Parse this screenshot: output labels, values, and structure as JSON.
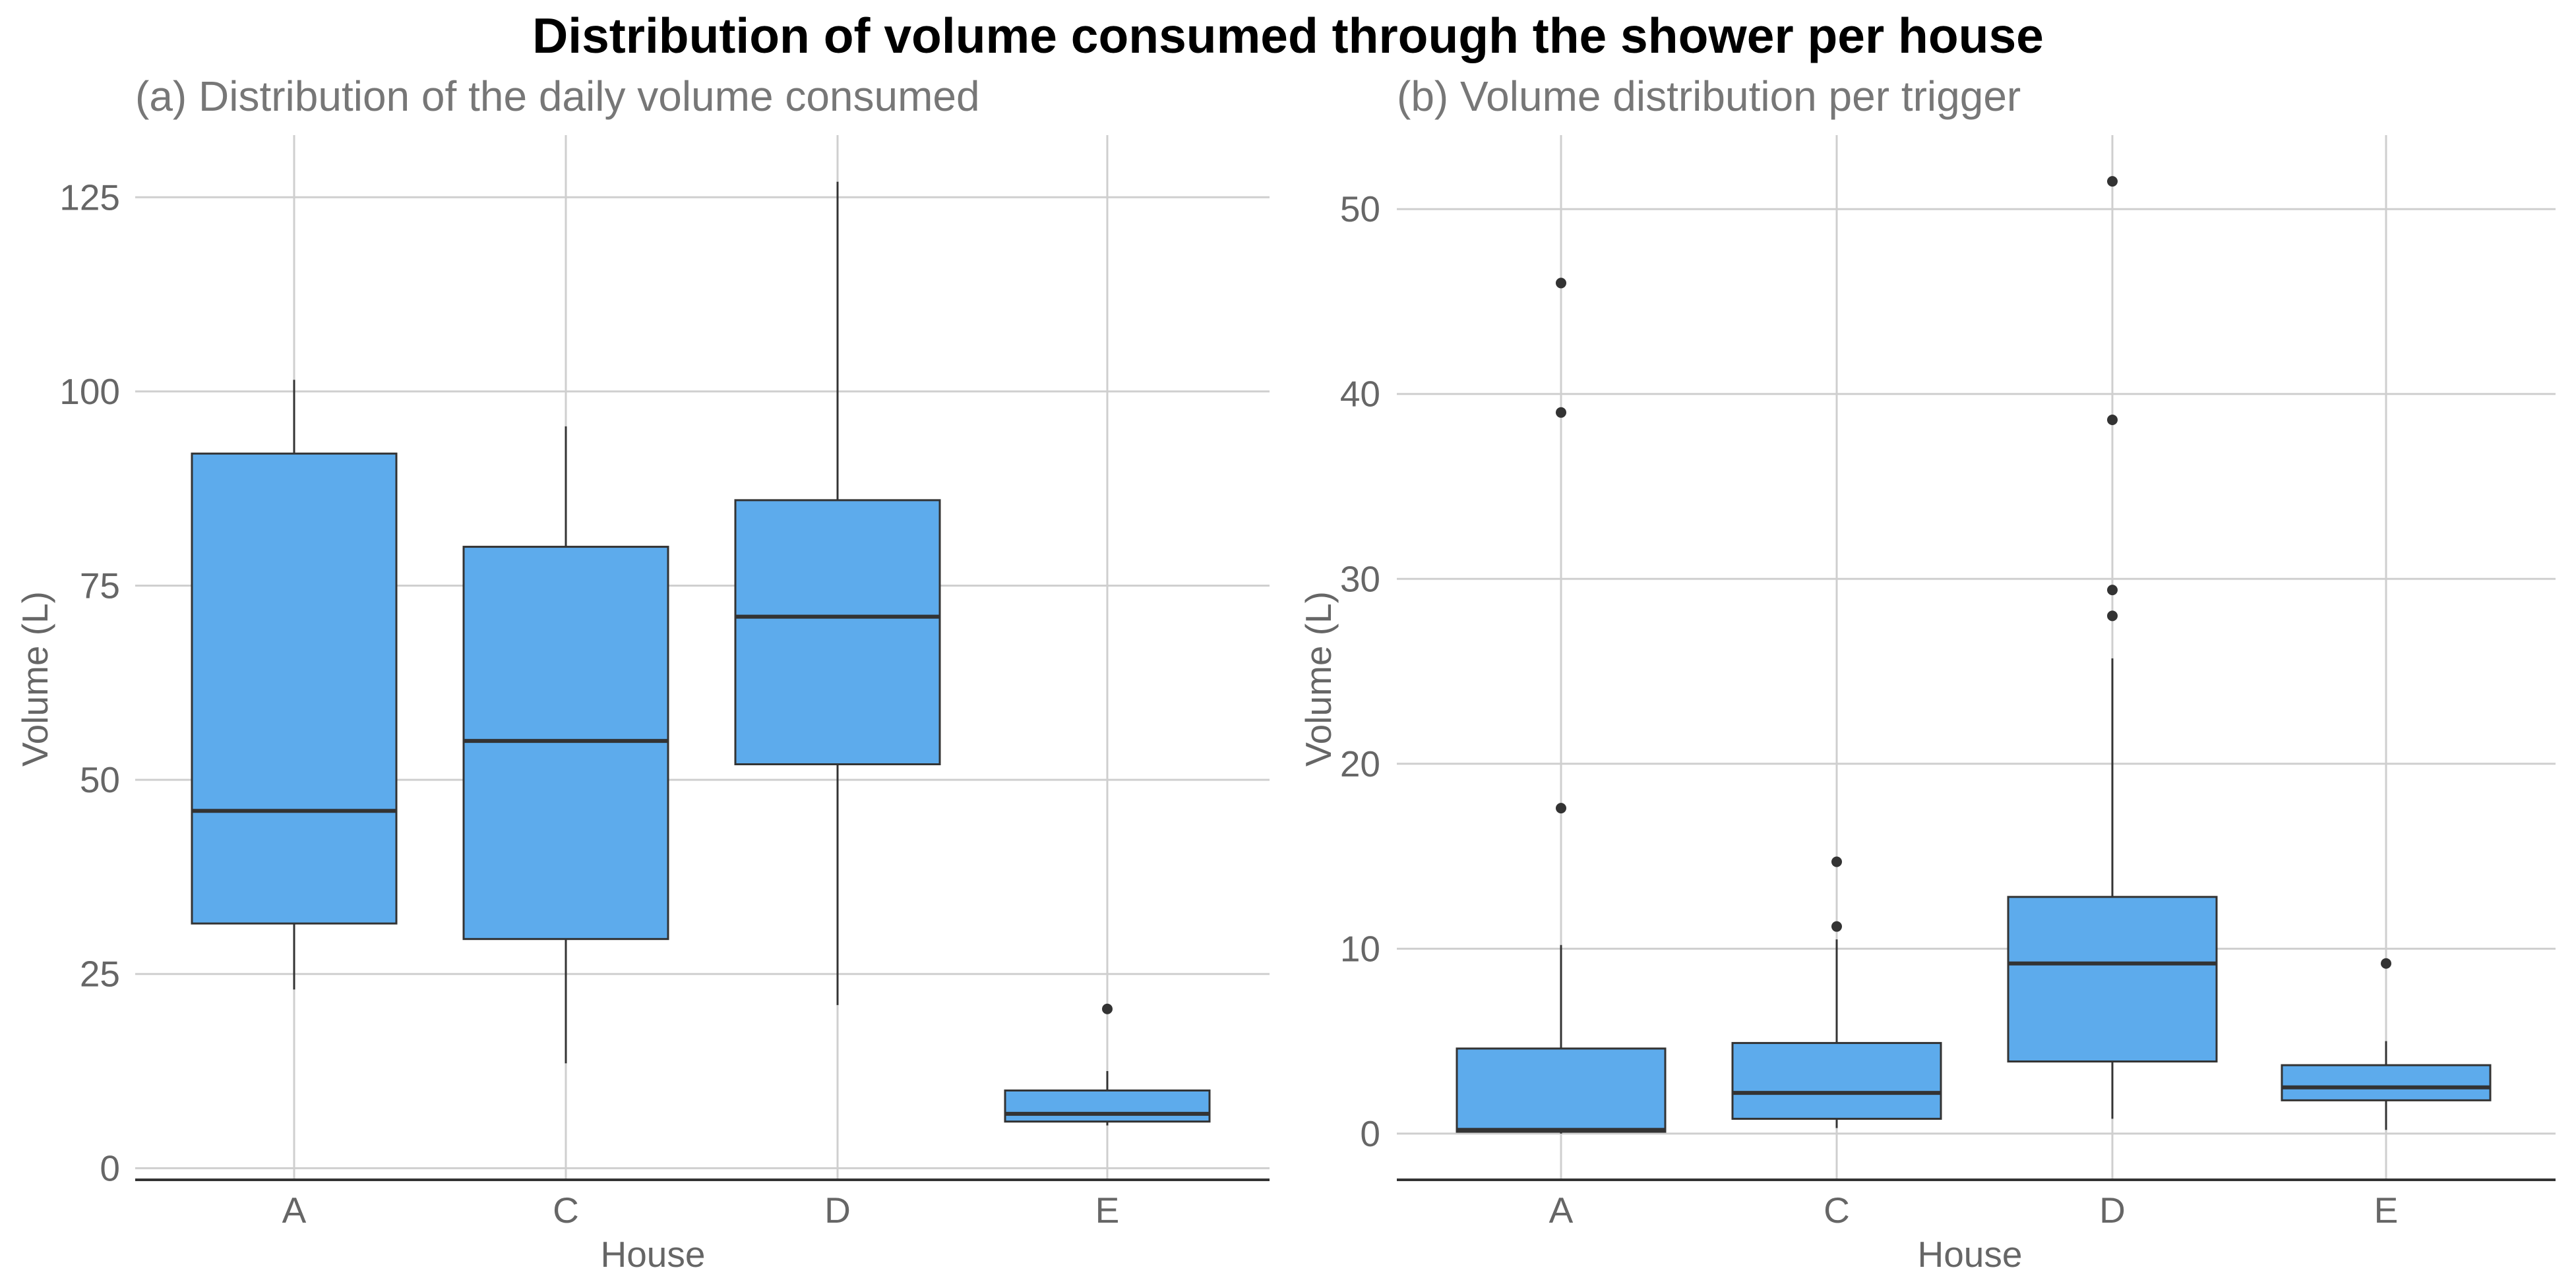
{
  "figure": {
    "title": "Distribution of volume consumed through the shower per house",
    "box_color": "#5DABEC"
  },
  "chart_data": [
    {
      "type": "box",
      "title": "(a) Distribution of the daily volume consumed",
      "xlabel": "House",
      "ylabel": "Volume (L)",
      "ylim": [
        -1.5,
        133
      ],
      "yticks": [
        0,
        25,
        50,
        75,
        100,
        125
      ],
      "categories": [
        "A",
        "C",
        "D",
        "E"
      ],
      "boxes": [
        {
          "category": "A",
          "whisker_low": 23,
          "q1": 31.5,
          "median": 46,
          "q3": 92,
          "whisker_high": 101.5,
          "outliers": []
        },
        {
          "category": "C",
          "whisker_low": 13.5,
          "q1": 29.5,
          "median": 55,
          "q3": 80,
          "whisker_high": 95.5,
          "outliers": []
        },
        {
          "category": "D",
          "whisker_low": 21,
          "q1": 52,
          "median": 71,
          "q3": 86,
          "whisker_high": 127,
          "outliers": []
        },
        {
          "category": "E",
          "whisker_low": 5.5,
          "q1": 6,
          "median": 7,
          "q3": 10,
          "whisker_high": 12.5,
          "outliers": [
            20.5
          ]
        }
      ]
    },
    {
      "type": "box",
      "title": "(b) Volume distribution per trigger",
      "xlabel": "House",
      "ylabel": "Volume (L)",
      "ylim": [
        -2.5,
        54
      ],
      "yticks": [
        0,
        10,
        20,
        30,
        40,
        50
      ],
      "categories": [
        "A",
        "C",
        "D",
        "E"
      ],
      "boxes": [
        {
          "category": "A",
          "whisker_low": 0,
          "q1": 0.1,
          "median": 0.2,
          "q3": 4.6,
          "whisker_high": 10.2,
          "outliers": [
            17.6,
            39,
            46
          ]
        },
        {
          "category": "C",
          "whisker_low": 0.3,
          "q1": 0.8,
          "median": 2.2,
          "q3": 4.9,
          "whisker_high": 10.5,
          "outliers": [
            11.2,
            14.7
          ]
        },
        {
          "category": "D",
          "whisker_low": 0.8,
          "q1": 3.9,
          "median": 9.2,
          "q3": 12.8,
          "whisker_high": 25.7,
          "outliers": [
            28,
            29.4,
            38.6,
            51.5
          ]
        },
        {
          "category": "E",
          "whisker_low": 0.2,
          "q1": 1.8,
          "median": 2.5,
          "q3": 3.7,
          "whisker_high": 5,
          "outliers": [
            9.2
          ]
        }
      ]
    }
  ]
}
